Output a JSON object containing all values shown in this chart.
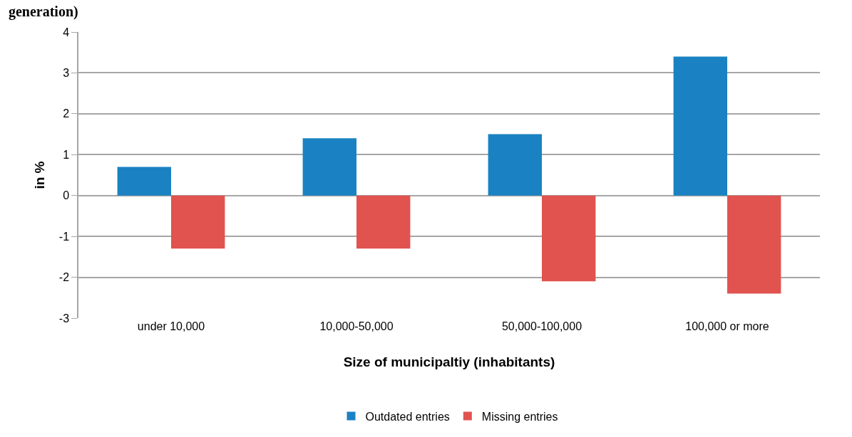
{
  "chart_data": {
    "type": "bar",
    "title": "generation)",
    "xlabel": "Size of municipaltiy (inhabitants)",
    "ylabel": "in %",
    "categories": [
      "under 10,000",
      "10,000-50,000",
      "50,000-100,000",
      "100,000 or more"
    ],
    "series": [
      {
        "name": "Outdated entries",
        "color": "#1a82c2",
        "values": [
          0.7,
          1.4,
          1.5,
          3.4
        ]
      },
      {
        "name": "Missing entries",
        "color": "#e0534f",
        "values": [
          -1.3,
          -1.3,
          -2.1,
          -2.4
        ]
      }
    ],
    "ylim": [
      -3,
      4
    ],
    "yticks": [
      -3,
      -2,
      -1,
      0,
      1,
      2,
      3,
      4
    ],
    "grid": "y",
    "legend": "bottom"
  }
}
